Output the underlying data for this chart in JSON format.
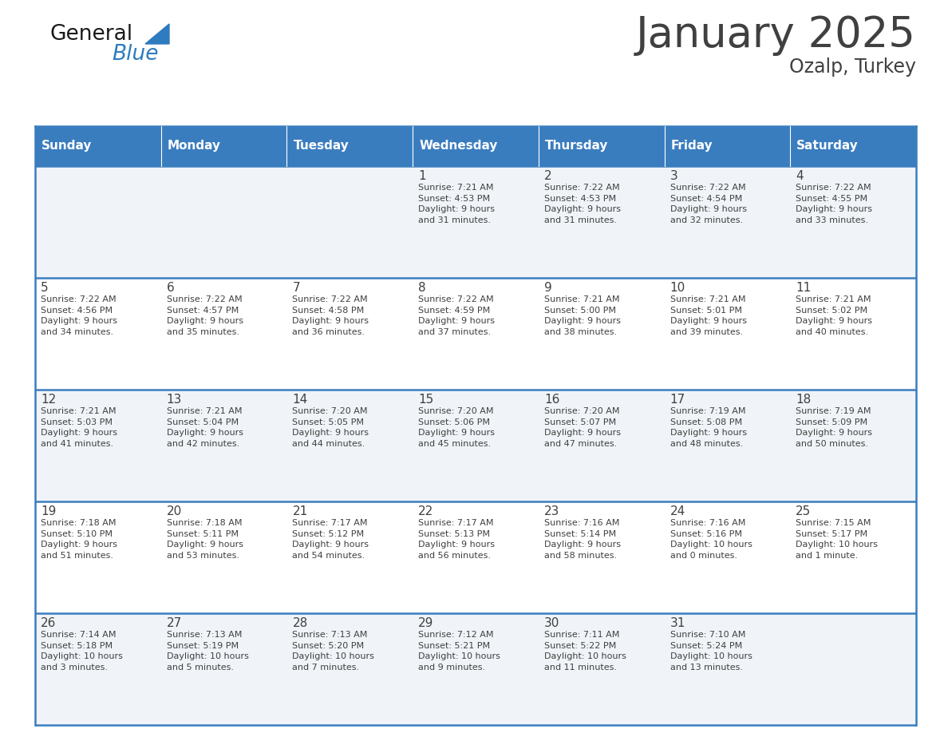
{
  "title": "January 2025",
  "subtitle": "Ozalp, Turkey",
  "header_color": "#3a7dbf",
  "header_text_color": "#ffffff",
  "row_bg_odd": "#f0f4f8",
  "row_bg_even": "#ffffff",
  "border_color": "#3a7dbf",
  "text_color": "#404040",
  "days_of_week": [
    "Sunday",
    "Monday",
    "Tuesday",
    "Wednesday",
    "Thursday",
    "Friday",
    "Saturday"
  ],
  "weeks": [
    [
      {
        "day": "",
        "info": ""
      },
      {
        "day": "",
        "info": ""
      },
      {
        "day": "",
        "info": ""
      },
      {
        "day": "1",
        "info": "Sunrise: 7:21 AM\nSunset: 4:53 PM\nDaylight: 9 hours\nand 31 minutes."
      },
      {
        "day": "2",
        "info": "Sunrise: 7:22 AM\nSunset: 4:53 PM\nDaylight: 9 hours\nand 31 minutes."
      },
      {
        "day": "3",
        "info": "Sunrise: 7:22 AM\nSunset: 4:54 PM\nDaylight: 9 hours\nand 32 minutes."
      },
      {
        "day": "4",
        "info": "Sunrise: 7:22 AM\nSunset: 4:55 PM\nDaylight: 9 hours\nand 33 minutes."
      }
    ],
    [
      {
        "day": "5",
        "info": "Sunrise: 7:22 AM\nSunset: 4:56 PM\nDaylight: 9 hours\nand 34 minutes."
      },
      {
        "day": "6",
        "info": "Sunrise: 7:22 AM\nSunset: 4:57 PM\nDaylight: 9 hours\nand 35 minutes."
      },
      {
        "day": "7",
        "info": "Sunrise: 7:22 AM\nSunset: 4:58 PM\nDaylight: 9 hours\nand 36 minutes."
      },
      {
        "day": "8",
        "info": "Sunrise: 7:22 AM\nSunset: 4:59 PM\nDaylight: 9 hours\nand 37 minutes."
      },
      {
        "day": "9",
        "info": "Sunrise: 7:21 AM\nSunset: 5:00 PM\nDaylight: 9 hours\nand 38 minutes."
      },
      {
        "day": "10",
        "info": "Sunrise: 7:21 AM\nSunset: 5:01 PM\nDaylight: 9 hours\nand 39 minutes."
      },
      {
        "day": "11",
        "info": "Sunrise: 7:21 AM\nSunset: 5:02 PM\nDaylight: 9 hours\nand 40 minutes."
      }
    ],
    [
      {
        "day": "12",
        "info": "Sunrise: 7:21 AM\nSunset: 5:03 PM\nDaylight: 9 hours\nand 41 minutes."
      },
      {
        "day": "13",
        "info": "Sunrise: 7:21 AM\nSunset: 5:04 PM\nDaylight: 9 hours\nand 42 minutes."
      },
      {
        "day": "14",
        "info": "Sunrise: 7:20 AM\nSunset: 5:05 PM\nDaylight: 9 hours\nand 44 minutes."
      },
      {
        "day": "15",
        "info": "Sunrise: 7:20 AM\nSunset: 5:06 PM\nDaylight: 9 hours\nand 45 minutes."
      },
      {
        "day": "16",
        "info": "Sunrise: 7:20 AM\nSunset: 5:07 PM\nDaylight: 9 hours\nand 47 minutes."
      },
      {
        "day": "17",
        "info": "Sunrise: 7:19 AM\nSunset: 5:08 PM\nDaylight: 9 hours\nand 48 minutes."
      },
      {
        "day": "18",
        "info": "Sunrise: 7:19 AM\nSunset: 5:09 PM\nDaylight: 9 hours\nand 50 minutes."
      }
    ],
    [
      {
        "day": "19",
        "info": "Sunrise: 7:18 AM\nSunset: 5:10 PM\nDaylight: 9 hours\nand 51 minutes."
      },
      {
        "day": "20",
        "info": "Sunrise: 7:18 AM\nSunset: 5:11 PM\nDaylight: 9 hours\nand 53 minutes."
      },
      {
        "day": "21",
        "info": "Sunrise: 7:17 AM\nSunset: 5:12 PM\nDaylight: 9 hours\nand 54 minutes."
      },
      {
        "day": "22",
        "info": "Sunrise: 7:17 AM\nSunset: 5:13 PM\nDaylight: 9 hours\nand 56 minutes."
      },
      {
        "day": "23",
        "info": "Sunrise: 7:16 AM\nSunset: 5:14 PM\nDaylight: 9 hours\nand 58 minutes."
      },
      {
        "day": "24",
        "info": "Sunrise: 7:16 AM\nSunset: 5:16 PM\nDaylight: 10 hours\nand 0 minutes."
      },
      {
        "day": "25",
        "info": "Sunrise: 7:15 AM\nSunset: 5:17 PM\nDaylight: 10 hours\nand 1 minute."
      }
    ],
    [
      {
        "day": "26",
        "info": "Sunrise: 7:14 AM\nSunset: 5:18 PM\nDaylight: 10 hours\nand 3 minutes."
      },
      {
        "day": "27",
        "info": "Sunrise: 7:13 AM\nSunset: 5:19 PM\nDaylight: 10 hours\nand 5 minutes."
      },
      {
        "day": "28",
        "info": "Sunrise: 7:13 AM\nSunset: 5:20 PM\nDaylight: 10 hours\nand 7 minutes."
      },
      {
        "day": "29",
        "info": "Sunrise: 7:12 AM\nSunset: 5:21 PM\nDaylight: 10 hours\nand 9 minutes."
      },
      {
        "day": "30",
        "info": "Sunrise: 7:11 AM\nSunset: 5:22 PM\nDaylight: 10 hours\nand 11 minutes."
      },
      {
        "day": "31",
        "info": "Sunrise: 7:10 AM\nSunset: 5:24 PM\nDaylight: 10 hours\nand 13 minutes."
      },
      {
        "day": "",
        "info": ""
      }
    ]
  ],
  "logo_general_color": "#1a1a1a",
  "logo_blue_color": "#2e7bbf",
  "logo_triangle_color": "#2e7bbf",
  "title_fontsize": 38,
  "subtitle_fontsize": 17,
  "header_fontsize": 11,
  "day_num_fontsize": 11,
  "cell_text_fontsize": 8
}
